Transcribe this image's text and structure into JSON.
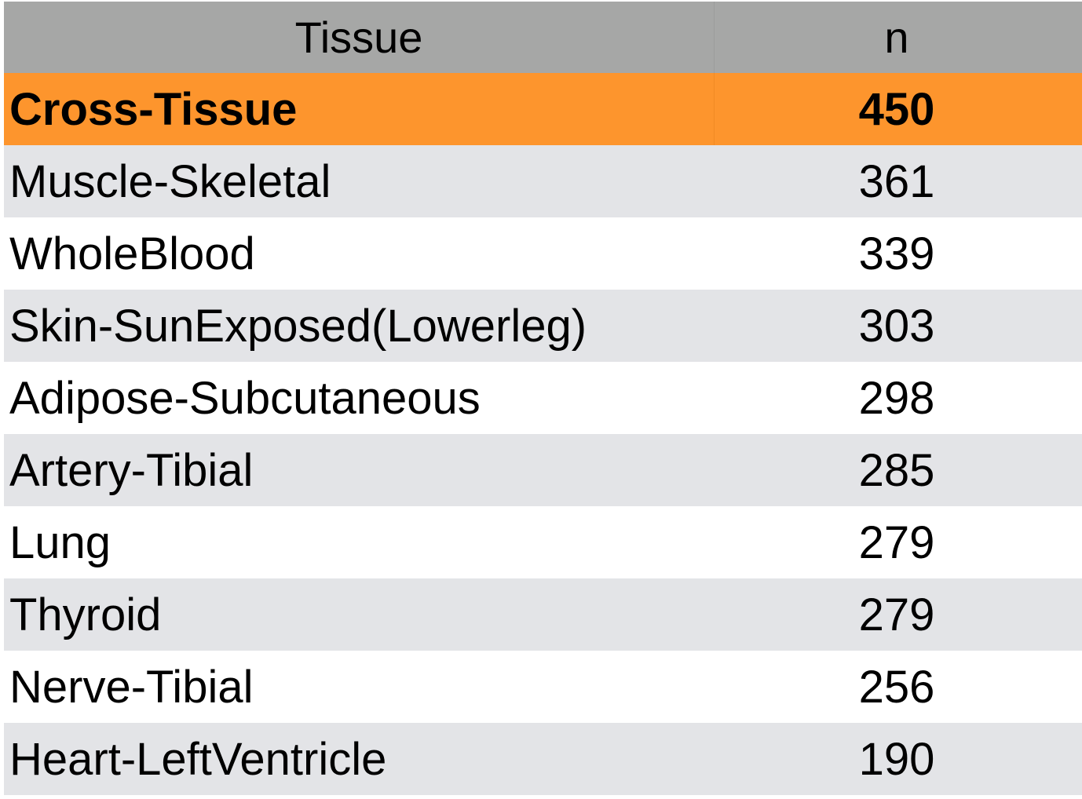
{
  "table": {
    "headers": {
      "tissue": "Tissue",
      "n": "n"
    },
    "rows": [
      {
        "tissue": "Cross-Tissue",
        "n": "450"
      },
      {
        "tissue": "Muscle-Skeletal",
        "n": "361"
      },
      {
        "tissue": "WholeBlood",
        "n": "339"
      },
      {
        "tissue": "Skin-SunExposed(Lowerleg)",
        "n": "303"
      },
      {
        "tissue": "Adipose-Subcutaneous",
        "n": "298"
      },
      {
        "tissue": "Artery-Tibial",
        "n": "285"
      },
      {
        "tissue": "Lung",
        "n": "279"
      },
      {
        "tissue": "Thyroid",
        "n": "279"
      },
      {
        "tissue": "Nerve-Tibial",
        "n": "256"
      },
      {
        "tissue": "Heart-LeftVentricle",
        "n": "190"
      }
    ]
  },
  "colors": {
    "header_background": "#a6a7a6",
    "highlight_row": "#fd952d",
    "band_row": "#e3e4e7",
    "plain_row": "#ffffff"
  }
}
